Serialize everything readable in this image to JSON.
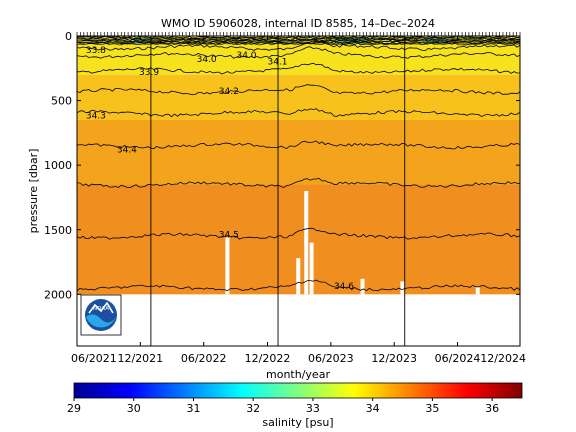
{
  "chart_data": {
    "type": "heatmap",
    "title": "WMO ID 5906028, internal ID 8585, 14–Dec–2024",
    "xlabel": "month/year",
    "ylabel": "pressure [dbar]",
    "x_ticks": [
      "06/2021",
      "12/2021",
      "06/2022",
      "12/2022",
      "06/2023",
      "12/2023",
      "06/2024",
      "12/2024"
    ],
    "x_tick_fraction": [
      0.0,
      0.143,
      0.286,
      0.43,
      0.573,
      0.716,
      0.859,
      1.0
    ],
    "year_boundaries": [
      "01/2022",
      "01/2023",
      "01/2024"
    ],
    "y_ticks": [
      0,
      500,
      1000,
      1500,
      2000
    ],
    "ylim": [
      0,
      2400
    ],
    "y_reversed": true,
    "max_pressure": 2000,
    "contours": [
      {
        "level": "33.8",
        "pressure": 90
      },
      {
        "level": "34.0",
        "pressure": 150
      },
      {
        "level": "34.1",
        "pressure": 270
      },
      {
        "level": "34.2",
        "pressure": 430
      },
      {
        "level": "34.3",
        "pressure": 600
      },
      {
        "level": "34.4",
        "pressure": 850
      },
      {
        "level": "34.5",
        "pressure": 1150
      },
      {
        "level": "34.55",
        "pressure": 1550
      },
      {
        "level": "34.6",
        "pressure": 1950
      }
    ],
    "contour_labels": [
      {
        "text": "33.8",
        "x_fraction": 0.02,
        "pressure": 130
      },
      {
        "text": "33.9",
        "x_fraction": 0.14,
        "pressure": 300
      },
      {
        "text": "34.0",
        "x_fraction": 0.27,
        "pressure": 200
      },
      {
        "text": "34.0",
        "x_fraction": 0.36,
        "pressure": 170
      },
      {
        "text": "34.1",
        "x_fraction": 0.43,
        "pressure": 220
      },
      {
        "text": "34.2",
        "x_fraction": 0.32,
        "pressure": 450
      },
      {
        "text": "34.3",
        "x_fraction": 0.02,
        "pressure": 640
      },
      {
        "text": "34.4",
        "x_fraction": 0.09,
        "pressure": 900
      },
      {
        "text": "34.5",
        "x_fraction": 0.32,
        "pressure": 1560
      },
      {
        "text": "34.6",
        "x_fraction": 0.58,
        "pressure": 1960
      }
    ],
    "colorbar": {
      "label": "salinity [psu]",
      "ticks": [
        29,
        30,
        31,
        32,
        33,
        34,
        35,
        36
      ],
      "range": [
        29,
        36.5
      ],
      "colormap": [
        "#00008f",
        "#0000ff",
        "#0080ff",
        "#00ffff",
        "#80ff80",
        "#ffff00",
        "#ff8000",
        "#ff0000",
        "#800000"
      ]
    },
    "field_colors": {
      "surface": "#f2f24a",
      "upper": "#f7e21e",
      "mid": "#f8c21c",
      "deep": "#f4a41c",
      "abyss": "#f08e1f",
      "low_salinity_patch": "#8fd58f"
    },
    "logo": "NOAA",
    "grid": false
  }
}
